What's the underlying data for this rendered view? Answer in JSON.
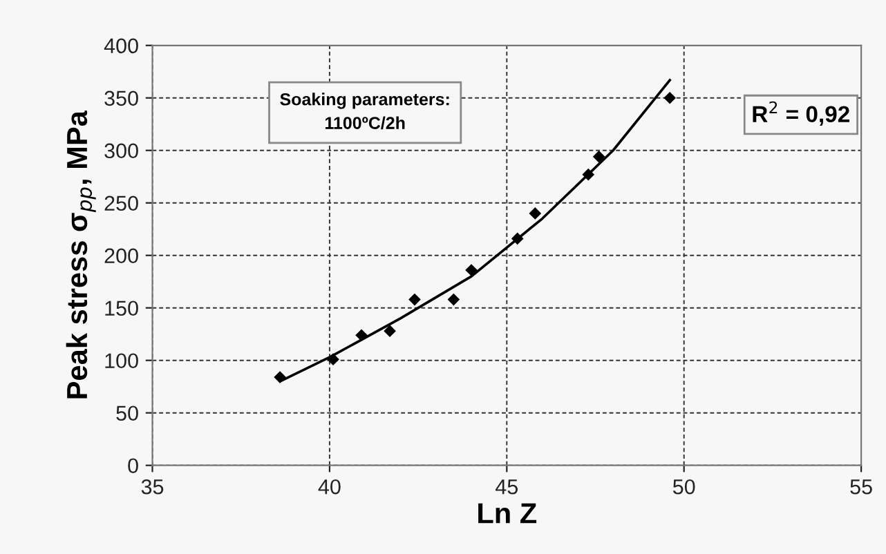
{
  "chart_data": {
    "type": "scatter",
    "xlabel": "Ln Z",
    "ylabel": "Peak stress σ$_{pp}$, MPa",
    "xlim": [
      35,
      55
    ],
    "xticks": [
      35,
      40,
      45,
      50,
      55
    ],
    "ylim": [
      0,
      400
    ],
    "yticks": [
      0,
      50,
      100,
      150,
      200,
      250,
      300,
      350,
      400
    ],
    "grid": true,
    "legend": false,
    "marker": "diamond",
    "annotations": [
      "Soaking parameters:\n1100ºC/2h",
      "R$^{2}$ = 0,92"
    ],
    "series": [
      {
        "color": "#000000",
        "x": [
          38.6,
          40.1,
          40.9,
          41.7,
          42.4,
          43.5,
          44.0,
          45.3,
          45.8,
          47.3,
          47.6,
          49.6
        ],
        "values": [
          84,
          101,
          124,
          128,
          158,
          158,
          186,
          216,
          240,
          277,
          294,
          350
        ]
      },
      {
        "type": "line",
        "color": "#000000",
        "marker": "none",
        "line_style": "solid",
        "x": [
          38.6,
          40,
          42,
          44,
          46,
          48,
          49.6
        ],
        "values": [
          80,
          103,
          140,
          180,
          235,
          300,
          367
        ]
      }
    ]
  }
}
